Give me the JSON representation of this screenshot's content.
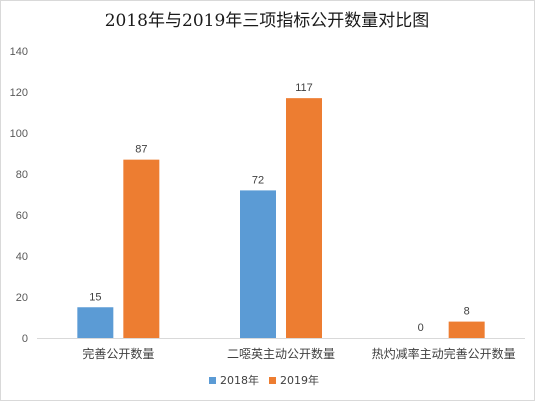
{
  "chart_data": {
    "type": "bar",
    "title": "2018年与2019年三项指标公开数量对比图",
    "categories": [
      "完善公开数量",
      "二噁英主动公开数量",
      "热灼减率主动完善公开数量"
    ],
    "series": [
      {
        "name": "2018年",
        "values": [
          15,
          72,
          0
        ],
        "color": "#5b9bd5"
      },
      {
        "name": "2019年",
        "values": [
          87,
          117,
          8
        ],
        "color": "#ed7d31"
      }
    ],
    "ylim": [
      0,
      140
    ],
    "yticks": [
      0,
      20,
      40,
      60,
      80,
      100,
      120,
      140
    ],
    "grid": false,
    "legend": "bottom",
    "data_labels": true
  }
}
